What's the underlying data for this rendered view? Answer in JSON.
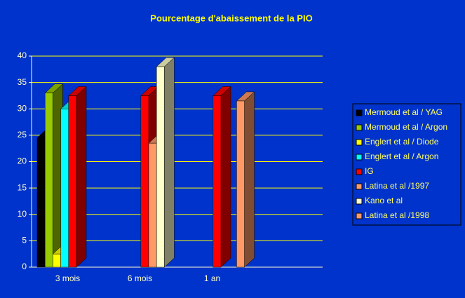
{
  "chart_data": {
    "type": "bar3d",
    "title": "Pourcentage d'abaissement de la PIO",
    "categories": [
      "3 mois",
      "6 mois",
      "1 an"
    ],
    "series": [
      {
        "name": "Mermoud et al / YAG",
        "color": "#000000",
        "values": [
          24.5,
          null,
          null
        ]
      },
      {
        "name": "Mermoud et al / Argon",
        "color": "#99cc00",
        "values": [
          33,
          null,
          null
        ]
      },
      {
        "name": "Englert et al / Diode",
        "color": "#ffff00",
        "values": [
          2.5,
          null,
          null
        ]
      },
      {
        "name": "Englert et al / Argon",
        "color": "#00ffff",
        "values": [
          30,
          null,
          null
        ]
      },
      {
        "name": "IG",
        "color": "#ff0000",
        "values": [
          32.5,
          32.5,
          32.5
        ]
      },
      {
        "name": "Latina et al /1997",
        "color": "#ff9966",
        "values": [
          null,
          23.5,
          null
        ]
      },
      {
        "name": "Kano et al",
        "color": "#ffffcc",
        "values": [
          null,
          38,
          null
        ]
      },
      {
        "name": "Latina et al /1998",
        "color": "#ff9966",
        "values": [
          null,
          null,
          31.5
        ]
      }
    ],
    "ylim": [
      0,
      40
    ],
    "yticks": [
      0,
      5,
      10,
      15,
      20,
      25,
      30,
      35,
      40
    ],
    "grid": true,
    "legend": "right"
  }
}
